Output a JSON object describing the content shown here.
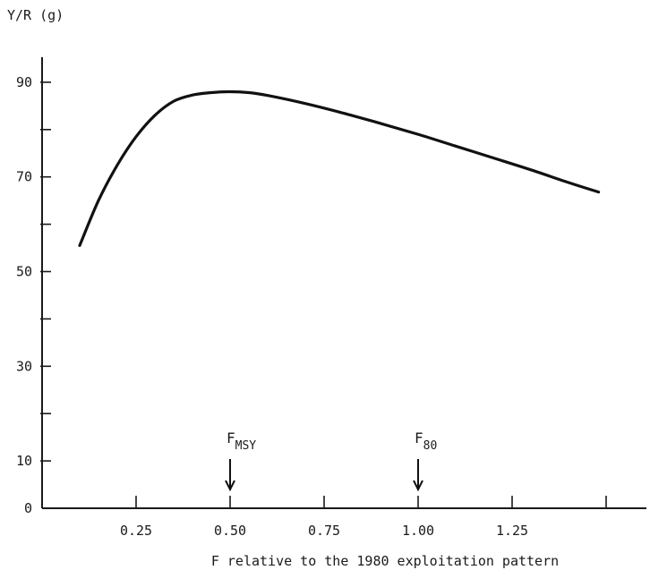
{
  "chart_data": {
    "type": "line",
    "ylabel": "Y/R (g)",
    "xlabel": "F relative to the 1980 exploitation pattern",
    "xlim": [
      0.0,
      1.5
    ],
    "ylim": [
      0,
      90
    ],
    "y_ticks": [
      0,
      10,
      20,
      30,
      40,
      50,
      60,
      70,
      80,
      90
    ],
    "y_tick_labels": [
      "0",
      "10",
      "",
      "30",
      "",
      "50",
      "",
      "70",
      "",
      "90"
    ],
    "x_ticks": [
      0.25,
      0.5,
      0.75,
      1.0,
      1.25,
      1.5
    ],
    "x_tick_labels": [
      "0.25",
      "0.50",
      "0.75",
      "1.00",
      "1.25",
      ""
    ],
    "grid": false,
    "series": [
      {
        "x": [
          0.1,
          0.15,
          0.2,
          0.25,
          0.3,
          0.35,
          0.4,
          0.45,
          0.5,
          0.55,
          0.6,
          0.7,
          0.8,
          0.9,
          1.0,
          1.1,
          1.2,
          1.3,
          1.4,
          1.48
        ],
        "y": [
          55.5,
          65,
          72.5,
          78.5,
          83,
          86,
          87.3,
          87.8,
          88,
          87.8,
          87.2,
          85.5,
          83.5,
          81.3,
          79,
          76.5,
          74,
          71.5,
          68.8,
          66.8
        ]
      }
    ],
    "annotations": [
      {
        "label": "F",
        "subscript": "MSY",
        "x": 0.5
      },
      {
        "label": "F",
        "subscript": "80",
        "x": 1.0
      }
    ]
  }
}
